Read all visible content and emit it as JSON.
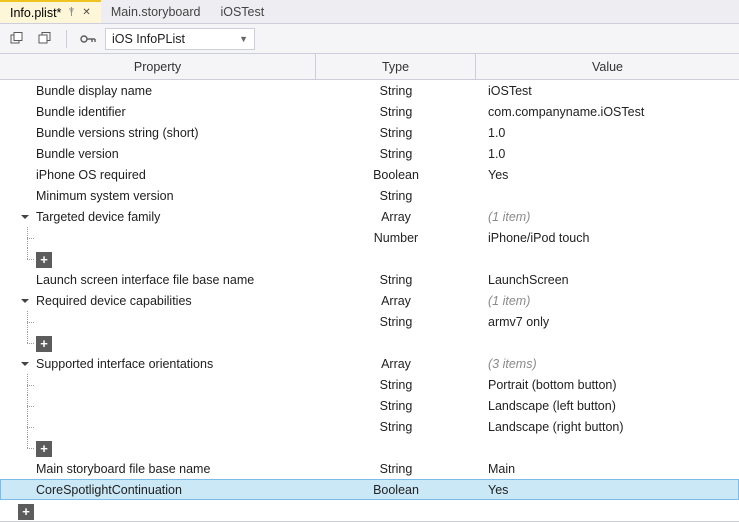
{
  "tabs": [
    {
      "label": "Info.plist*",
      "active": true,
      "pinned": true,
      "closable": true
    },
    {
      "label": "Main.storyboard",
      "active": false
    },
    {
      "label": "iOSTest",
      "active": false
    }
  ],
  "toolbar": {
    "expand_all_icon": "expand-all-icon",
    "collapse_all_icon": "collapse-all-icon",
    "key_icon": "key-icon",
    "combo_value": "iOS InfoPList"
  },
  "columns": {
    "property": "Property",
    "type": "Type",
    "value": "Value"
  },
  "colors": {
    "tab_active_bg": "#fef6d8",
    "tab_bar_bg": "#eeeef2",
    "border": "#cccedb",
    "selected_bg": "#cbe8f6",
    "selected_border": "#7bbde8",
    "italic_text": "#8a8a8a",
    "add_box_bg": "#5c5c5c"
  },
  "rows": [
    {
      "kind": "leaf",
      "indent": 1,
      "property": "Bundle display name",
      "type": "String",
      "value": "iOSTest"
    },
    {
      "kind": "leaf",
      "indent": 1,
      "property": "Bundle identifier",
      "type": "String",
      "value": "com.companyname.iOSTest"
    },
    {
      "kind": "leaf",
      "indent": 1,
      "property": "Bundle versions string (short)",
      "type": "String",
      "value": "1.0"
    },
    {
      "kind": "leaf",
      "indent": 1,
      "property": "Bundle version",
      "type": "String",
      "value": "1.0"
    },
    {
      "kind": "leaf",
      "indent": 1,
      "property": "iPhone OS required",
      "type": "Boolean",
      "value": "Yes"
    },
    {
      "kind": "leaf",
      "indent": 1,
      "property": "Minimum system version",
      "type": "String",
      "value": ""
    },
    {
      "kind": "group",
      "indent": 0,
      "property": "Targeted device family",
      "type": "Array",
      "value": "(1 item)",
      "italic": true
    },
    {
      "kind": "child",
      "indent": 1,
      "property": "",
      "type": "Number",
      "value": "iPhone/iPod touch",
      "tree": "tee"
    },
    {
      "kind": "add",
      "indent": 1,
      "tree": "end"
    },
    {
      "kind": "leaf",
      "indent": 1,
      "property": "Launch screen interface file base name",
      "type": "String",
      "value": "LaunchScreen"
    },
    {
      "kind": "group",
      "indent": 0,
      "property": "Required device capabilities",
      "type": "Array",
      "value": "(1 item)",
      "italic": true
    },
    {
      "kind": "child",
      "indent": 1,
      "property": "",
      "type": "String",
      "value": "armv7 only",
      "tree": "tee"
    },
    {
      "kind": "add",
      "indent": 1,
      "tree": "end"
    },
    {
      "kind": "group",
      "indent": 0,
      "property": "Supported interface orientations",
      "type": "Array",
      "value": "(3 items)",
      "italic": true
    },
    {
      "kind": "child",
      "indent": 1,
      "property": "",
      "type": "String",
      "value": "Portrait (bottom button)",
      "tree": "tee"
    },
    {
      "kind": "child",
      "indent": 1,
      "property": "",
      "type": "String",
      "value": "Landscape (left button)",
      "tree": "tee"
    },
    {
      "kind": "child",
      "indent": 1,
      "property": "",
      "type": "String",
      "value": "Landscape (right button)",
      "tree": "tee"
    },
    {
      "kind": "add",
      "indent": 1,
      "tree": "end"
    },
    {
      "kind": "leaf",
      "indent": 1,
      "property": "Main storyboard file base name",
      "type": "String",
      "value": "Main"
    },
    {
      "kind": "leaf",
      "indent": 1,
      "property": "CoreSpotlightContinuation",
      "type": "Boolean",
      "value": "Yes",
      "selected": true
    },
    {
      "kind": "add",
      "indent": 0
    }
  ]
}
